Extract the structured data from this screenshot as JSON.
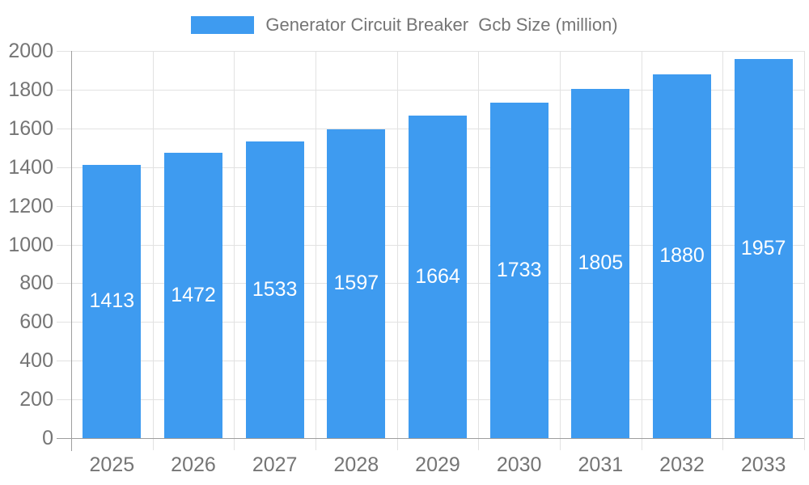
{
  "legend": {
    "label": "Generator Circuit Breaker  Gcb Size (million)",
    "swatch_color": "#3e9bf0"
  },
  "chart_data": {
    "type": "bar",
    "title": "Generator Circuit Breaker  Gcb Size (million)",
    "legend_label": "Generator Circuit Breaker  Gcb Size (million)",
    "legend_position": "top-center",
    "categories": [
      "2025",
      "2026",
      "2027",
      "2028",
      "2029",
      "2030",
      "2031",
      "2032",
      "2033"
    ],
    "values": [
      1413,
      1472,
      1533,
      1597,
      1664,
      1733,
      1805,
      1880,
      1957
    ],
    "xlabel": "",
    "ylabel": "",
    "ylim": [
      0,
      2000
    ],
    "ytick_step": 200,
    "yticks": [
      0,
      200,
      400,
      600,
      800,
      1000,
      1200,
      1400,
      1600,
      1800,
      2000
    ],
    "grid": true,
    "value_labels_shown": true,
    "colors": {
      "bar": "#3e9bf0",
      "value_label": "#ffffff",
      "axis_text": "#757575",
      "grid_line": "#e2e2e2",
      "axis_line": "#9e9e9e",
      "background": "#ffffff"
    }
  }
}
